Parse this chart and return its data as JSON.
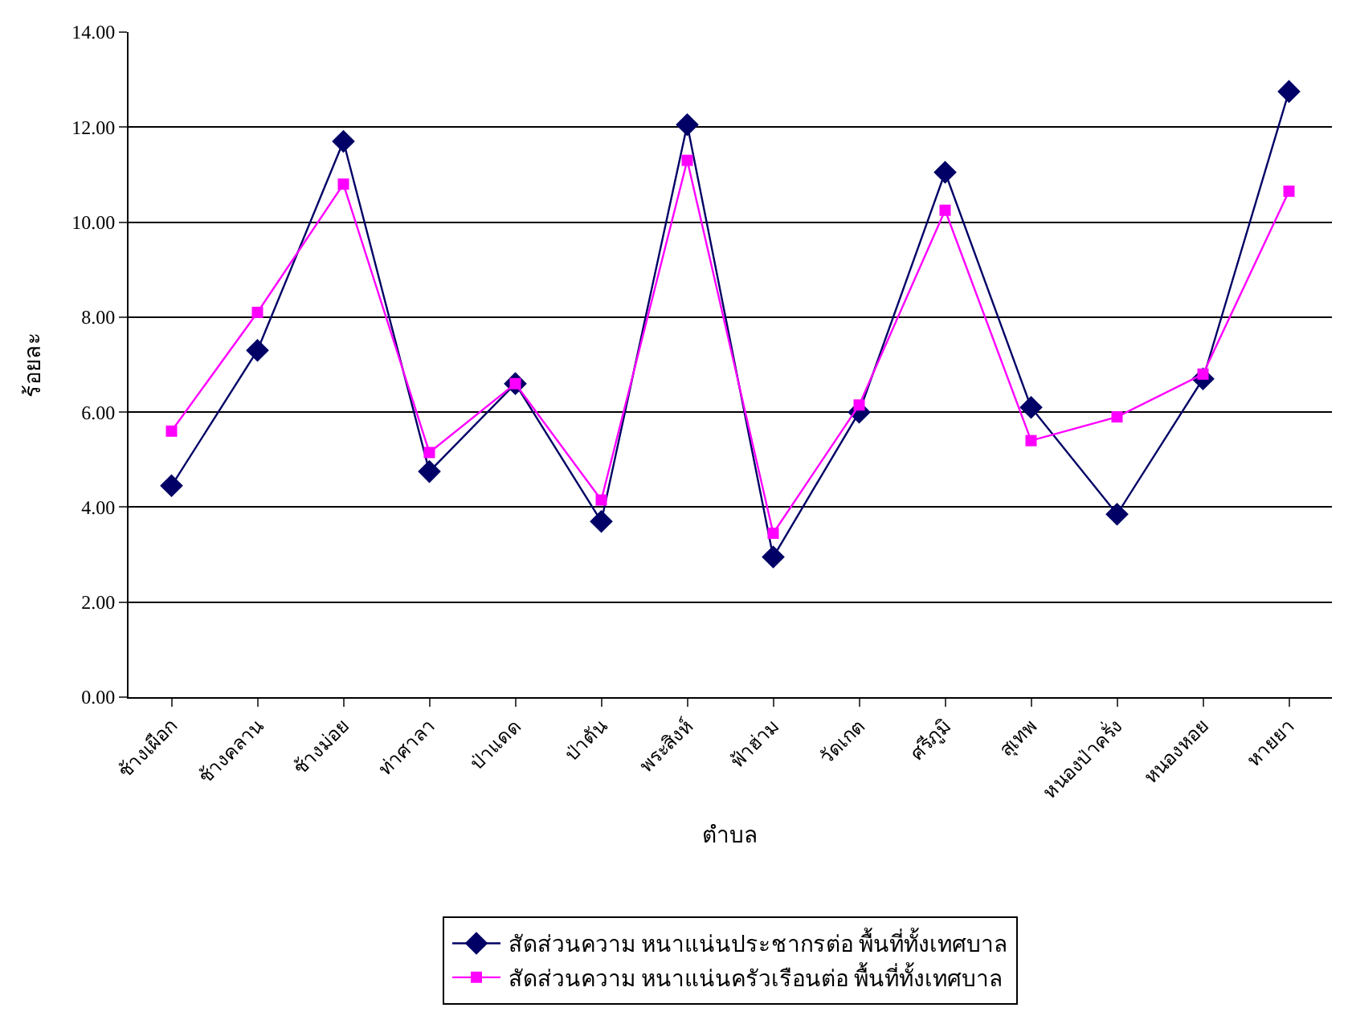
{
  "chart_data": {
    "type": "line",
    "xlabel": "ตำบล",
    "ylabel": "ร้อยละ",
    "categories": [
      "ช้างเผือก",
      "ช้างคลาน",
      "ช้างม่อย",
      "ท่าศาลา",
      "ป่าแดด",
      "ป่าตัน",
      "พระสิงห์",
      "ฟ้าฮ่าม",
      "วัดเกต",
      "ศรีภูมิ",
      "สุเทพ",
      "หนองป่าครั่ง",
      "หนองหอย",
      "หายยา"
    ],
    "series": [
      {
        "name": "สัดส่วนความ หนาแน่นประชากรต่อ พื้นที่ทั้งเทศบาล",
        "color": "#000066",
        "marker": "diamond",
        "values": [
          4.45,
          7.3,
          11.7,
          4.75,
          6.6,
          3.7,
          12.05,
          2.95,
          6.0,
          11.05,
          6.1,
          3.85,
          6.7,
          12.75
        ]
      },
      {
        "name": "สัดส่วนความ หนาแน่นครัวเรือนต่อ พื้นที่ทั้งเทศบาล",
        "color": "#ff00ff",
        "marker": "square",
        "values": [
          5.6,
          8.1,
          10.8,
          5.15,
          6.6,
          4.15,
          11.3,
          3.45,
          6.15,
          10.25,
          5.4,
          5.9,
          6.8,
          10.65
        ]
      }
    ],
    "ylim": [
      0,
      14
    ],
    "yticks": [
      {
        "value": 0,
        "label": "0.00"
      },
      {
        "value": 2,
        "label": "2.00"
      },
      {
        "value": 4,
        "label": "4.00"
      },
      {
        "value": 6,
        "label": "6.00"
      },
      {
        "value": 8,
        "label": "8.00"
      },
      {
        "value": 10,
        "label": "10.00"
      },
      {
        "value": 12,
        "label": "12.00"
      },
      {
        "value": 14,
        "label": "14.00"
      }
    ],
    "grid": "y",
    "legend": "bottom",
    "line_style": "solid"
  }
}
